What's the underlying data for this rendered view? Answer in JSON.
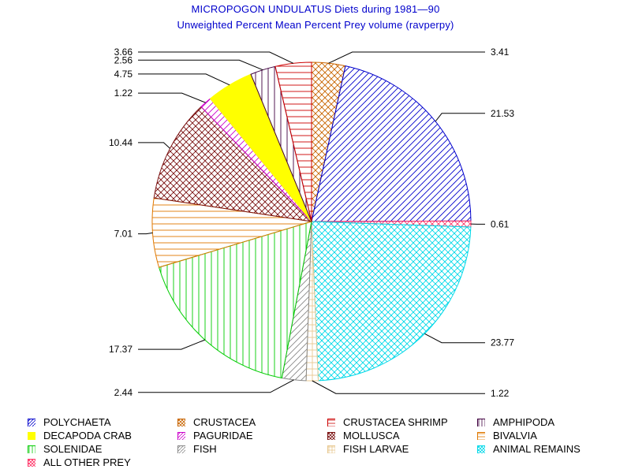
{
  "chart_data": {
    "type": "pie",
    "title": "MICROPOGON UNDULATUS Diets during 1981—90",
    "subtitle": "Unweighted Percent Mean Percent Prey  volume (ravperpy)",
    "slices": [
      {
        "name": "CRUSTACEA",
        "value": 3.41,
        "label": "3.41",
        "color": "#c86400",
        "pattern": "crosshatch"
      },
      {
        "name": "POLYCHAETA",
        "value": 21.53,
        "label": "21.53",
        "color": "#0000cc",
        "pattern": "diag"
      },
      {
        "name": "ALL OTHER PREY",
        "value": 0.61,
        "label": "0.61",
        "color": "#ff3366",
        "pattern": "crosshatch"
      },
      {
        "name": "ANIMAL REMAINS",
        "value": 23.77,
        "label": "23.77",
        "color": "#00d8e8",
        "pattern": "crosshatch"
      },
      {
        "name": "FISH LARVAE",
        "value": 1.22,
        "label": "1.22",
        "color": "#e8c890",
        "pattern": "grid"
      },
      {
        "name": "FISH",
        "value": 2.44,
        "label": "2.44",
        "color": "#888888",
        "pattern": "diag"
      },
      {
        "name": "SOLENIDAE",
        "value": 17.37,
        "label": "17.37",
        "color": "#00cc00",
        "pattern": "vertical"
      },
      {
        "name": "BIVALVIA",
        "value": 7.01,
        "label": "7.01",
        "color": "#e07800",
        "pattern": "horizontal"
      },
      {
        "name": "MOLLUSCA",
        "value": 10.44,
        "label": "10.44",
        "color": "#7a1010",
        "pattern": "crosshatch"
      },
      {
        "name": "PAGURIDAE",
        "value": 1.22,
        "label": "1.22",
        "color": "#cc00cc",
        "pattern": "diag"
      },
      {
        "name": "DECAPODA CRAB",
        "value": 4.75,
        "label": "4.75",
        "color": "#ffff00",
        "pattern": "solid"
      },
      {
        "name": "AMPHIPODA",
        "value": 2.56,
        "label": "2.56",
        "color": "#400040",
        "pattern": "vertical"
      },
      {
        "name": "CRUSTACEA SHRIMP",
        "value": 3.66,
        "label": "3.66",
        "color": "#cc0000",
        "pattern": "horizontal"
      }
    ],
    "legend": [
      "POLYCHAETA",
      "CRUSTACEA",
      "CRUSTACEA SHRIMP",
      "AMPHIPODA",
      "DECAPODA CRAB",
      "PAGURIDAE",
      "MOLLUSCA",
      "BIVALVIA",
      "SOLENIDAE",
      "FISH",
      "FISH LARVAE",
      "ANIMAL REMAINS",
      "ALL OTHER PREY"
    ],
    "legend_placement": "bottom",
    "start_angle_deg": 0,
    "direction": "clockwise"
  }
}
